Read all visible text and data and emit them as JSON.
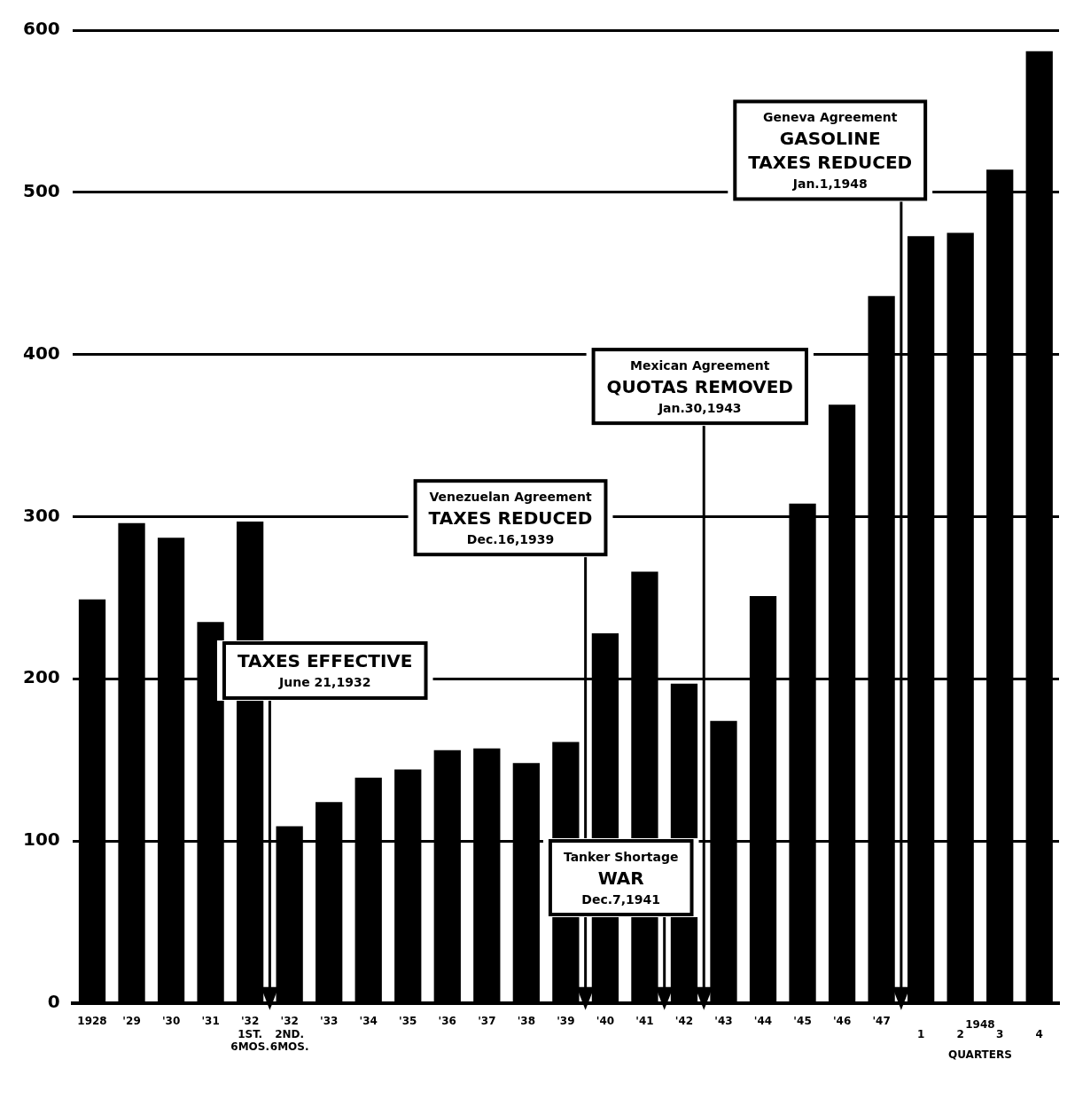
{
  "chart_data": {
    "type": "bar",
    "categories": [
      "1928",
      "'29",
      "'30",
      "'31",
      "'32\n1ST.\n6MOS.",
      "'32\n2ND.\n6MOS.",
      "'33",
      "'34",
      "'35",
      "'36",
      "'37",
      "'38",
      "'39",
      "'40",
      "'41",
      "'42",
      "'43",
      "'44",
      "'45",
      "'46",
      "'47",
      "1",
      "2",
      "3",
      "4"
    ],
    "values": [
      249,
      296,
      287,
      235,
      297,
      109,
      124,
      139,
      144,
      156,
      157,
      148,
      161,
      228,
      266,
      197,
      174,
      251,
      308,
      369,
      436,
      473,
      475,
      514,
      587
    ],
    "color": "#000000",
    "ylim": [
      0,
      600
    ],
    "yticks": [
      0,
      100,
      200,
      300,
      400,
      500,
      600
    ],
    "grid": "y",
    "annotations": [
      "TAXES EFFECTIVE\nJune 21,1932",
      "Venezuelan Agreement\nTAXES REDUCED\nDec.16,1939",
      "Tanker Shortage\nWAR\nDec.7,1941",
      "Mexican Agreement\nQUOTAS REMOVED\nJan.30,1943",
      "Geneva Agreement\nGASOLINE\nTAXES REDUCED\nJan.1,1948",
      "1948",
      "QUARTERS"
    ]
  }
}
